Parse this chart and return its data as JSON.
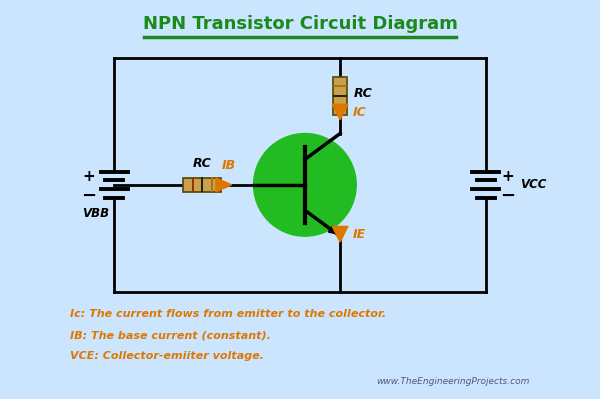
{
  "title": "NPN Transistor Circuit Diagram",
  "title_color": "#1a8a1a",
  "title_underline_color": "#1a8a1a",
  "bg_color": "#cce5ff",
  "inner_bg_color": "#ffffff",
  "border_color": "#44aadd",
  "wire_color": "#000000",
  "transistor_circle_color": "#22bb22",
  "arrow_color": "#dd7700",
  "resistor_face": "#c8a050",
  "resistor_edge": "#554400",
  "caption_line1": "Ic: The current flows from emitter to the collector.",
  "caption_line2": "IB: The base current (constant).",
  "caption_line3": "VCE: Collector-emiiter voltage.",
  "watermark": "www.TheEngineeringProjects.com"
}
